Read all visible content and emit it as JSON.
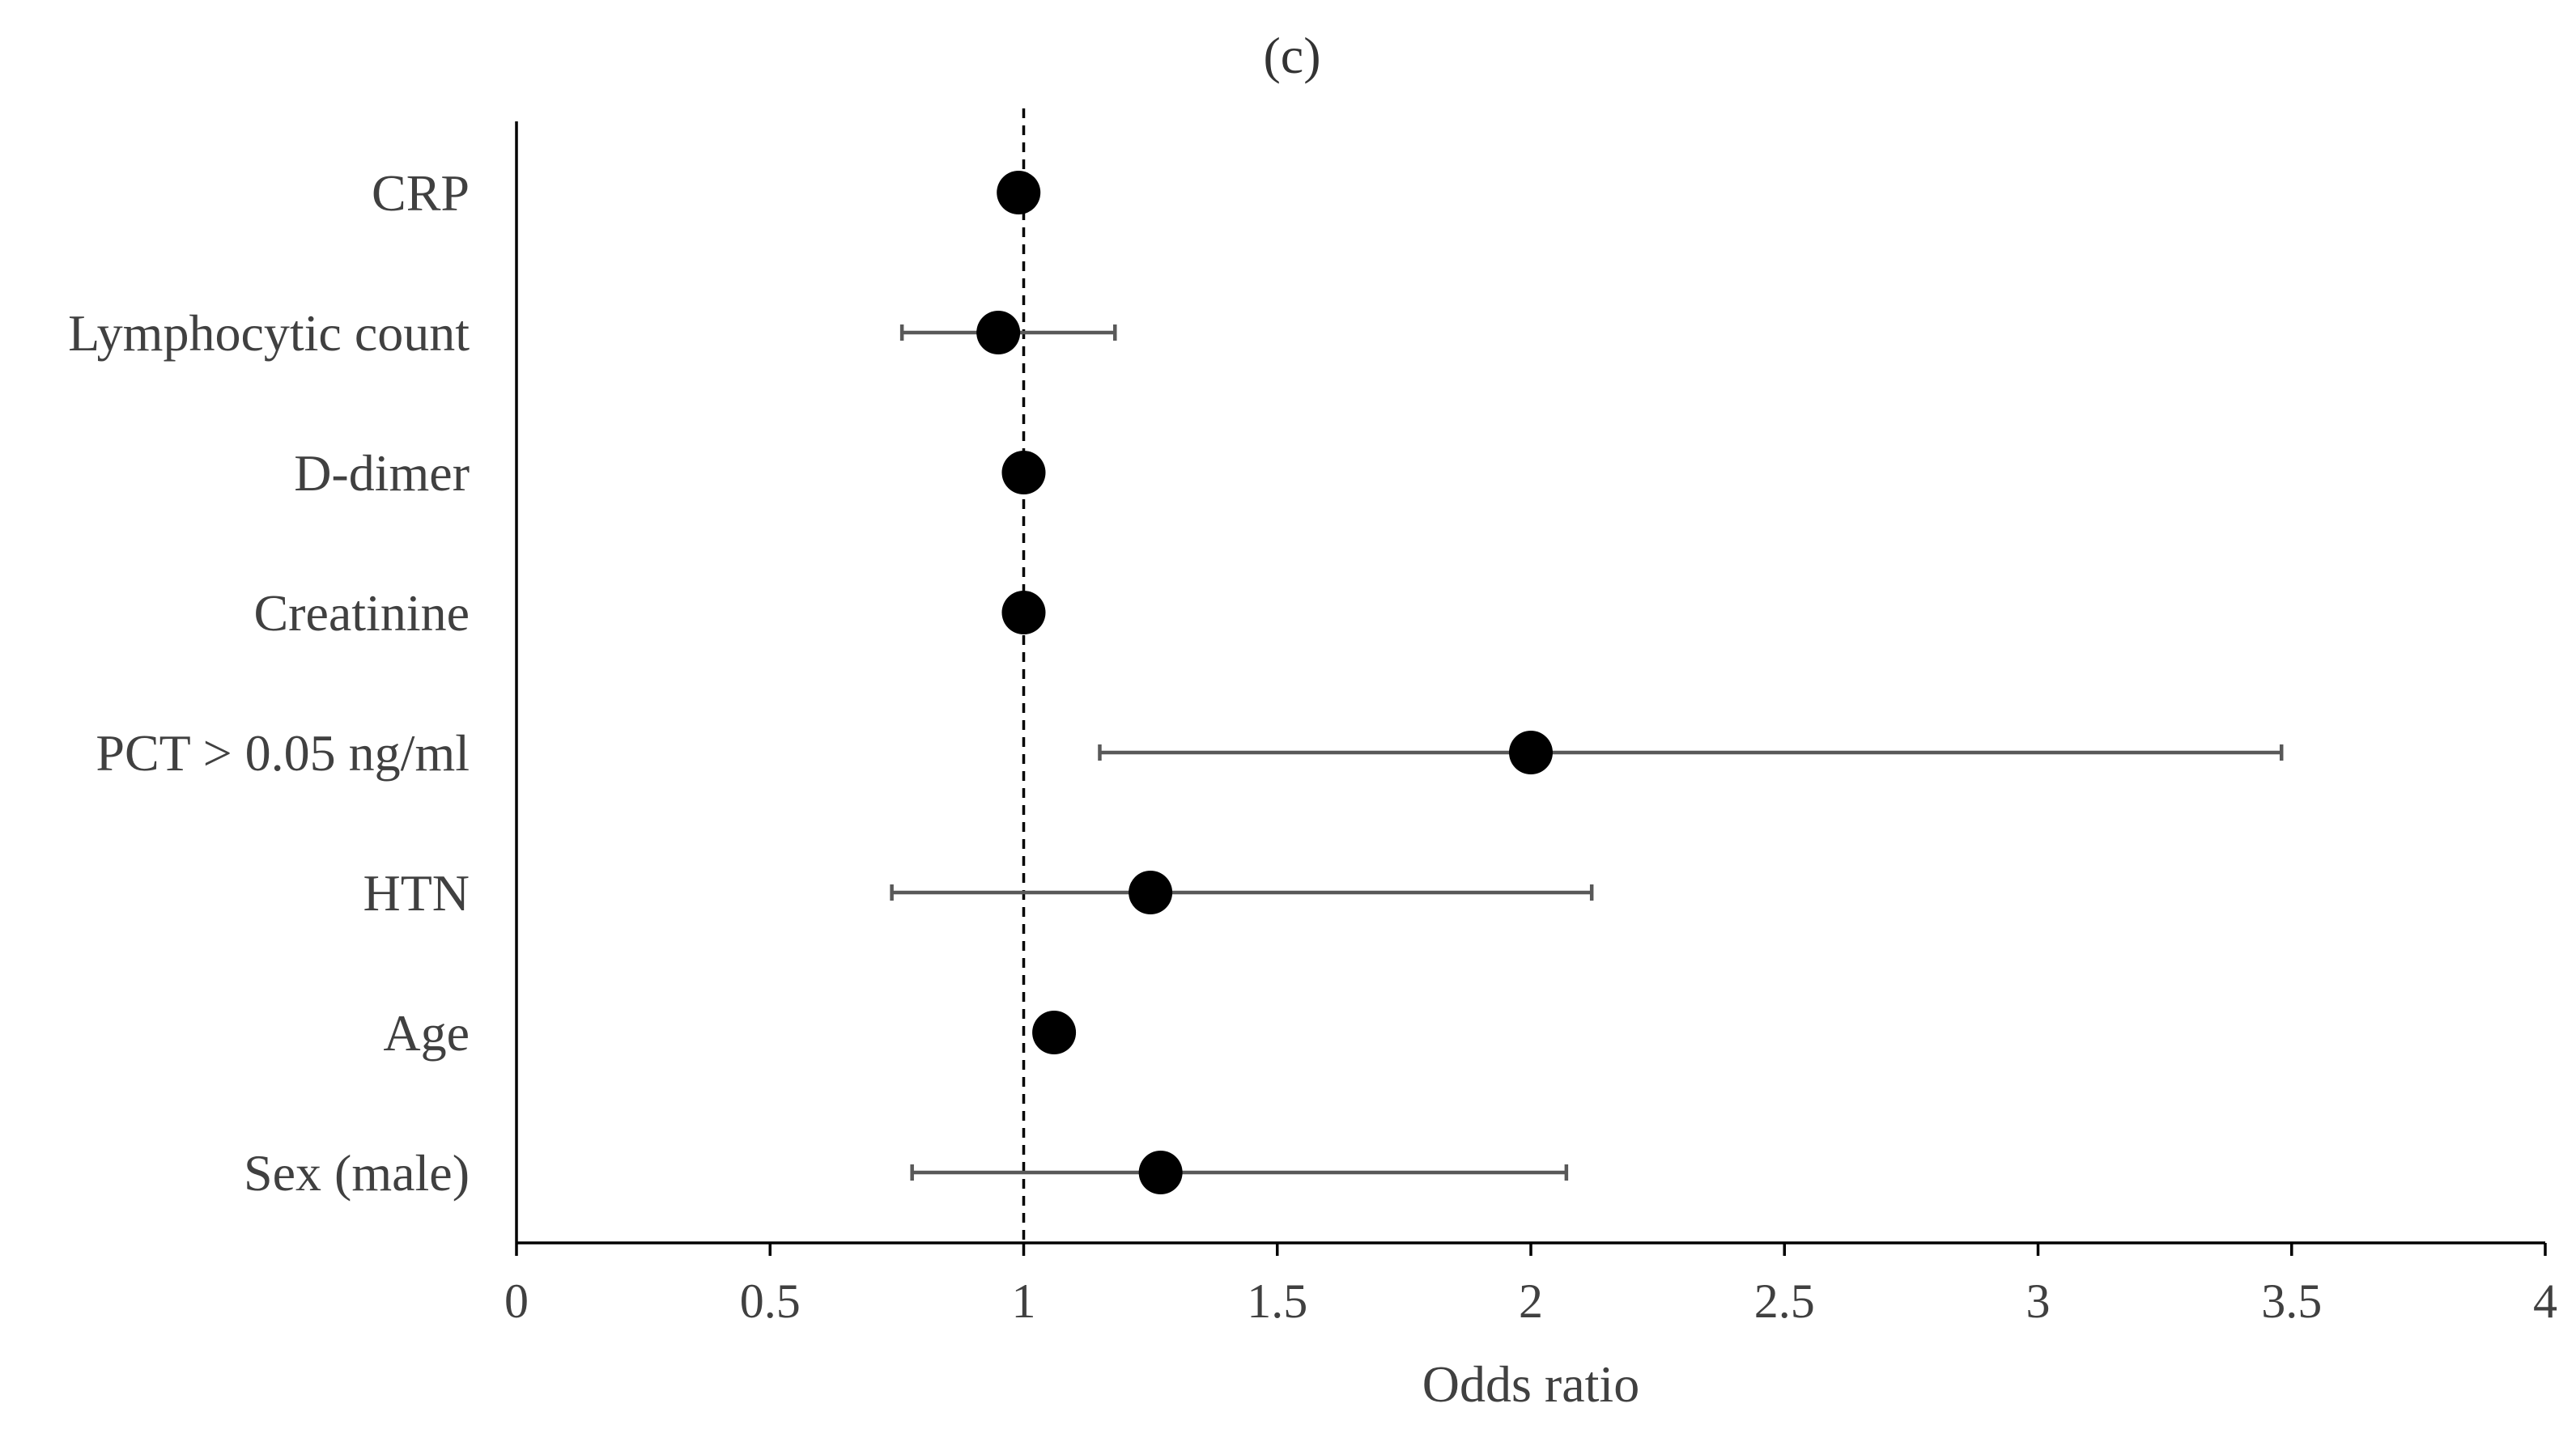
{
  "chart_data": {
    "type": "scatter",
    "subtype": "forest-plot",
    "title": "(c)",
    "xlabel": "Odds ratio",
    "ylabel": "",
    "xlim": [
      0,
      4
    ],
    "x_ticks": [
      0,
      0.5,
      1,
      1.5,
      2,
      2.5,
      3,
      3.5,
      4
    ],
    "x_tick_labels": [
      "0",
      "0.5",
      "1",
      "1.5",
      "2",
      "2.5",
      "3",
      "3.5",
      "4"
    ],
    "reference_line": {
      "x": 1,
      "style": "dashed"
    },
    "grid": false,
    "legend": "none",
    "categories": [
      "CRP",
      "Lymphocytic count",
      "D-dimer",
      "Creatinine",
      "PCT > 0.05 ng/ml",
      "HTN",
      "Age",
      "Sex (male)"
    ],
    "points": [
      {
        "label": "CRP",
        "or": 0.99,
        "lower": null,
        "upper": null
      },
      {
        "label": "Lymphocytic count",
        "or": 0.95,
        "lower": 0.76,
        "upper": 1.18
      },
      {
        "label": "D-dimer",
        "or": 1.0,
        "lower": null,
        "upper": null
      },
      {
        "label": "Creatinine",
        "or": 1.0,
        "lower": null,
        "upper": null
      },
      {
        "label": "PCT > 0.05 ng/ml",
        "or": 2.0,
        "lower": 1.15,
        "upper": 3.48
      },
      {
        "label": "HTN",
        "or": 1.25,
        "lower": 0.74,
        "upper": 2.12
      },
      {
        "label": "Age",
        "or": 1.06,
        "lower": null,
        "upper": null
      },
      {
        "label": "Sex (male)",
        "or": 1.27,
        "lower": 0.78,
        "upper": 2.07
      }
    ],
    "colors": {
      "point": "#000000",
      "error_bar": "#595959",
      "axis": "#000000",
      "text": "#404040"
    }
  }
}
